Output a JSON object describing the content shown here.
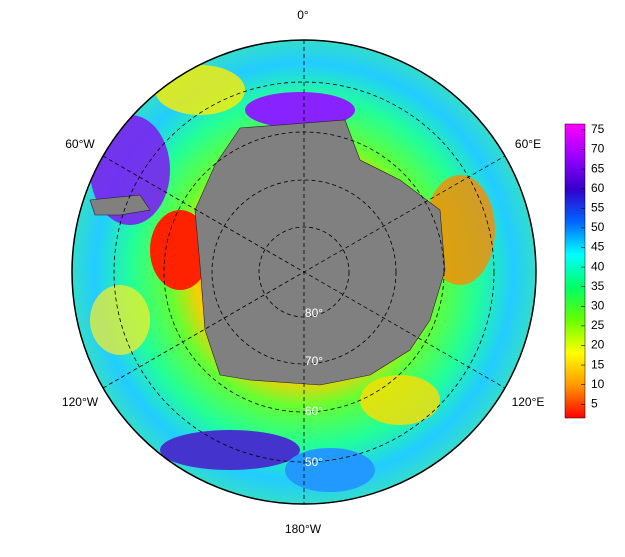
{
  "map": {
    "longitude_labels": [
      "0°",
      "60°E",
      "120°E",
      "180°W",
      "120°W",
      "60°W"
    ],
    "latitude_labels": [
      "80°",
      "70°",
      "60°",
      "50°"
    ],
    "colorbar": {
      "range": [
        1.5,
        76.5
      ],
      "ticks": [
        5,
        10,
        15,
        20,
        25,
        30,
        35,
        40,
        45,
        50,
        55,
        60,
        65,
        70,
        75
      ],
      "colors": [
        "#ff0000",
        "#ff9900",
        "#ffff00",
        "#66ff00",
        "#00ff66",
        "#00ffff",
        "#0066ff",
        "#3300cc",
        "#9900ff",
        "#ff00ff"
      ]
    }
  }
}
